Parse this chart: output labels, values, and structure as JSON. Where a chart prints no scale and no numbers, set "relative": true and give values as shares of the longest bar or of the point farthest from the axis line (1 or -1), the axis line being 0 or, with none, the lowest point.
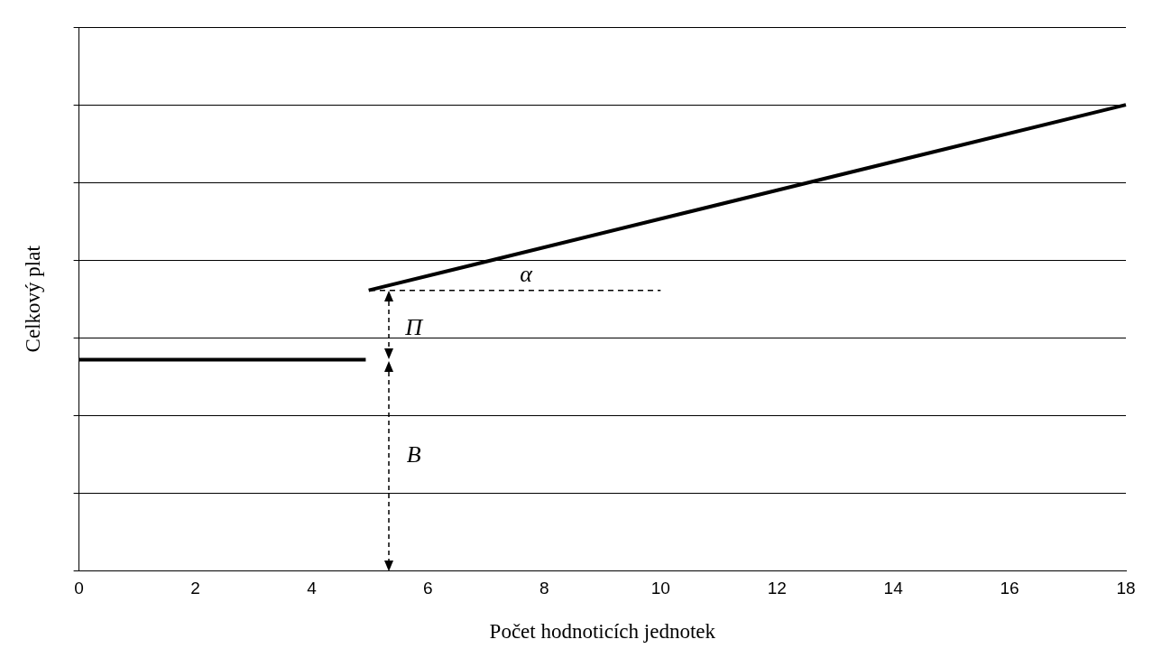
{
  "chart_data": {
    "type": "line",
    "relative": true,
    "xlabel": "Počet hodnoticích jednotek",
    "ylabel": "Celkový plat",
    "xlim": [
      0,
      18
    ],
    "xticks": [
      0,
      2,
      4,
      6,
      8,
      10,
      12,
      14,
      16,
      18
    ],
    "grid": "y",
    "legend": false,
    "marker": "none",
    "tick_labels": "x",
    "series": [
      {
        "color": "#000000",
        "x": [
          0,
          4.93
        ],
        "values": [
          0.453,
          0.453
        ]
      },
      {
        "color": "#000000",
        "x": [
          4.98,
          18
        ],
        "values": [
          0.602,
          1
        ]
      },
      {
        "color": "#000000",
        "line_style": "dashed",
        "x": [
          5,
          10
        ],
        "values": [
          0.602,
          0.602
        ]
      }
    ],
    "annotations": [
      "α",
      "Π",
      "B"
    ]
  }
}
